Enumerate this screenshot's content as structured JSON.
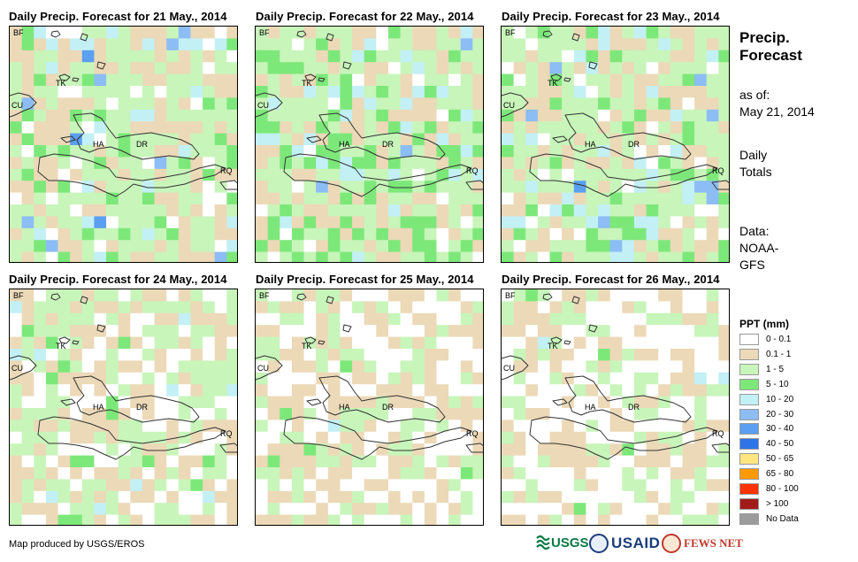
{
  "panels": [
    {
      "title": "Daily Precip. Forecast for 21 May., 2014"
    },
    {
      "title": "Daily Precip. Forecast for 22 May., 2014"
    },
    {
      "title": "Daily Precip. Forecast for 23 May., 2014"
    },
    {
      "title": "Daily Precip. Forecast for 24 May., 2014"
    },
    {
      "title": "Daily Precip. Forecast for 25 May., 2014"
    },
    {
      "title": "Daily Precip. Forecast for 26 May., 2014"
    }
  ],
  "map_labels": {
    "bf": "BF",
    "tk": "TK",
    "cu": "CU",
    "ha": "HA",
    "dr": "DR",
    "rq": "RQ"
  },
  "side": {
    "title_line1": "Precip.",
    "title_line2": "Forecast",
    "asof_line1": "as of:",
    "asof_line2": "May 21, 2014",
    "totals_line1": "Daily",
    "totals_line2": "Totals",
    "data_line1": "Data:",
    "data_line2": "NOAA-",
    "data_line3": "GFS"
  },
  "legend": {
    "title": "PPT (mm)",
    "items": [
      {
        "label": "0 - 0.1",
        "color": "#ffffff"
      },
      {
        "label": "0.1 - 1",
        "color": "#ecd9b8"
      },
      {
        "label": "1 - 5",
        "color": "#c8f5ba"
      },
      {
        "label": "5 - 10",
        "color": "#7de87a"
      },
      {
        "label": "10 - 20",
        "color": "#c2f0f5"
      },
      {
        "label": "20 - 30",
        "color": "#8cbdf5"
      },
      {
        "label": "30 - 40",
        "color": "#5b9ff0"
      },
      {
        "label": "40 - 50",
        "color": "#2f74e6"
      },
      {
        "label": "50 - 65",
        "color": "#ffe680"
      },
      {
        "label": "65 - 80",
        "color": "#ff9900"
      },
      {
        "label": "80 - 100",
        "color": "#ff3300"
      },
      {
        "label": "> 100",
        "color": "#a31a1a"
      },
      {
        "label": "No Data",
        "color": "#9c9c9c"
      }
    ]
  },
  "footer": {
    "credit": "Map produced by USGS/EROS",
    "logo_usgs": "USGS",
    "logo_usaid": "USAID",
    "logo_fewsnet": "FEWS NET"
  }
}
